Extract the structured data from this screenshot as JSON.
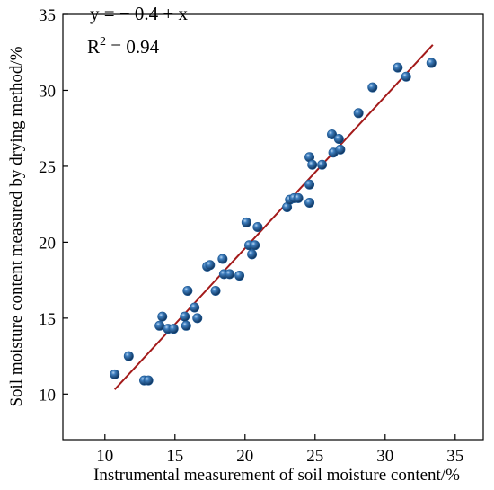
{
  "chart_data": {
    "type": "scatter",
    "title": "",
    "xlabel": "Instrumental measurement of soil moisture content/%",
    "ylabel": "Soil moisture content measured by drying method/%",
    "xlim": [
      7,
      37
    ],
    "ylim": [
      7,
      35
    ],
    "xticks": [
      10,
      15,
      20,
      25,
      30,
      35
    ],
    "yticks": [
      10,
      15,
      20,
      25,
      30,
      35
    ],
    "grid": false,
    "legend": "none",
    "annotations": {
      "equation": "y = − 0.4 + x",
      "r2_prefix": "R",
      "r2_sup": "2",
      "r2_suffix": " = 0.94"
    },
    "fit_line": {
      "intercept": -0.4,
      "slope": 1,
      "x_range": [
        10.7,
        33.4
      ],
      "color": "#a31a1a"
    },
    "point_color": "#1e5a96",
    "points": [
      [
        10.7,
        11.3
      ],
      [
        11.7,
        12.5
      ],
      [
        12.8,
        10.9
      ],
      [
        13.1,
        10.9
      ],
      [
        13.9,
        14.5
      ],
      [
        14.1,
        15.1
      ],
      [
        14.5,
        14.3
      ],
      [
        14.9,
        14.3
      ],
      [
        15.7,
        15.1
      ],
      [
        15.8,
        14.5
      ],
      [
        15.9,
        16.8
      ],
      [
        16.4,
        15.7
      ],
      [
        16.6,
        15.0
      ],
      [
        17.3,
        18.4
      ],
      [
        17.5,
        18.5
      ],
      [
        17.9,
        16.8
      ],
      [
        18.4,
        18.9
      ],
      [
        18.5,
        17.9
      ],
      [
        18.9,
        17.9
      ],
      [
        19.6,
        17.8
      ],
      [
        20.1,
        21.3
      ],
      [
        20.3,
        19.8
      ],
      [
        20.5,
        19.2
      ],
      [
        20.7,
        19.8
      ],
      [
        20.9,
        21.0
      ],
      [
        23.0,
        22.3
      ],
      [
        23.2,
        22.8
      ],
      [
        23.5,
        22.9
      ],
      [
        23.8,
        22.9
      ],
      [
        24.6,
        22.6
      ],
      [
        24.6,
        23.8
      ],
      [
        24.6,
        25.6
      ],
      [
        24.8,
        25.1
      ],
      [
        25.5,
        25.1
      ],
      [
        26.2,
        27.1
      ],
      [
        26.3,
        25.9
      ],
      [
        26.7,
        26.8
      ],
      [
        26.8,
        26.1
      ],
      [
        28.1,
        28.5
      ],
      [
        29.1,
        30.2
      ],
      [
        30.9,
        31.5
      ],
      [
        31.5,
        30.9
      ],
      [
        33.3,
        31.8
      ]
    ]
  }
}
